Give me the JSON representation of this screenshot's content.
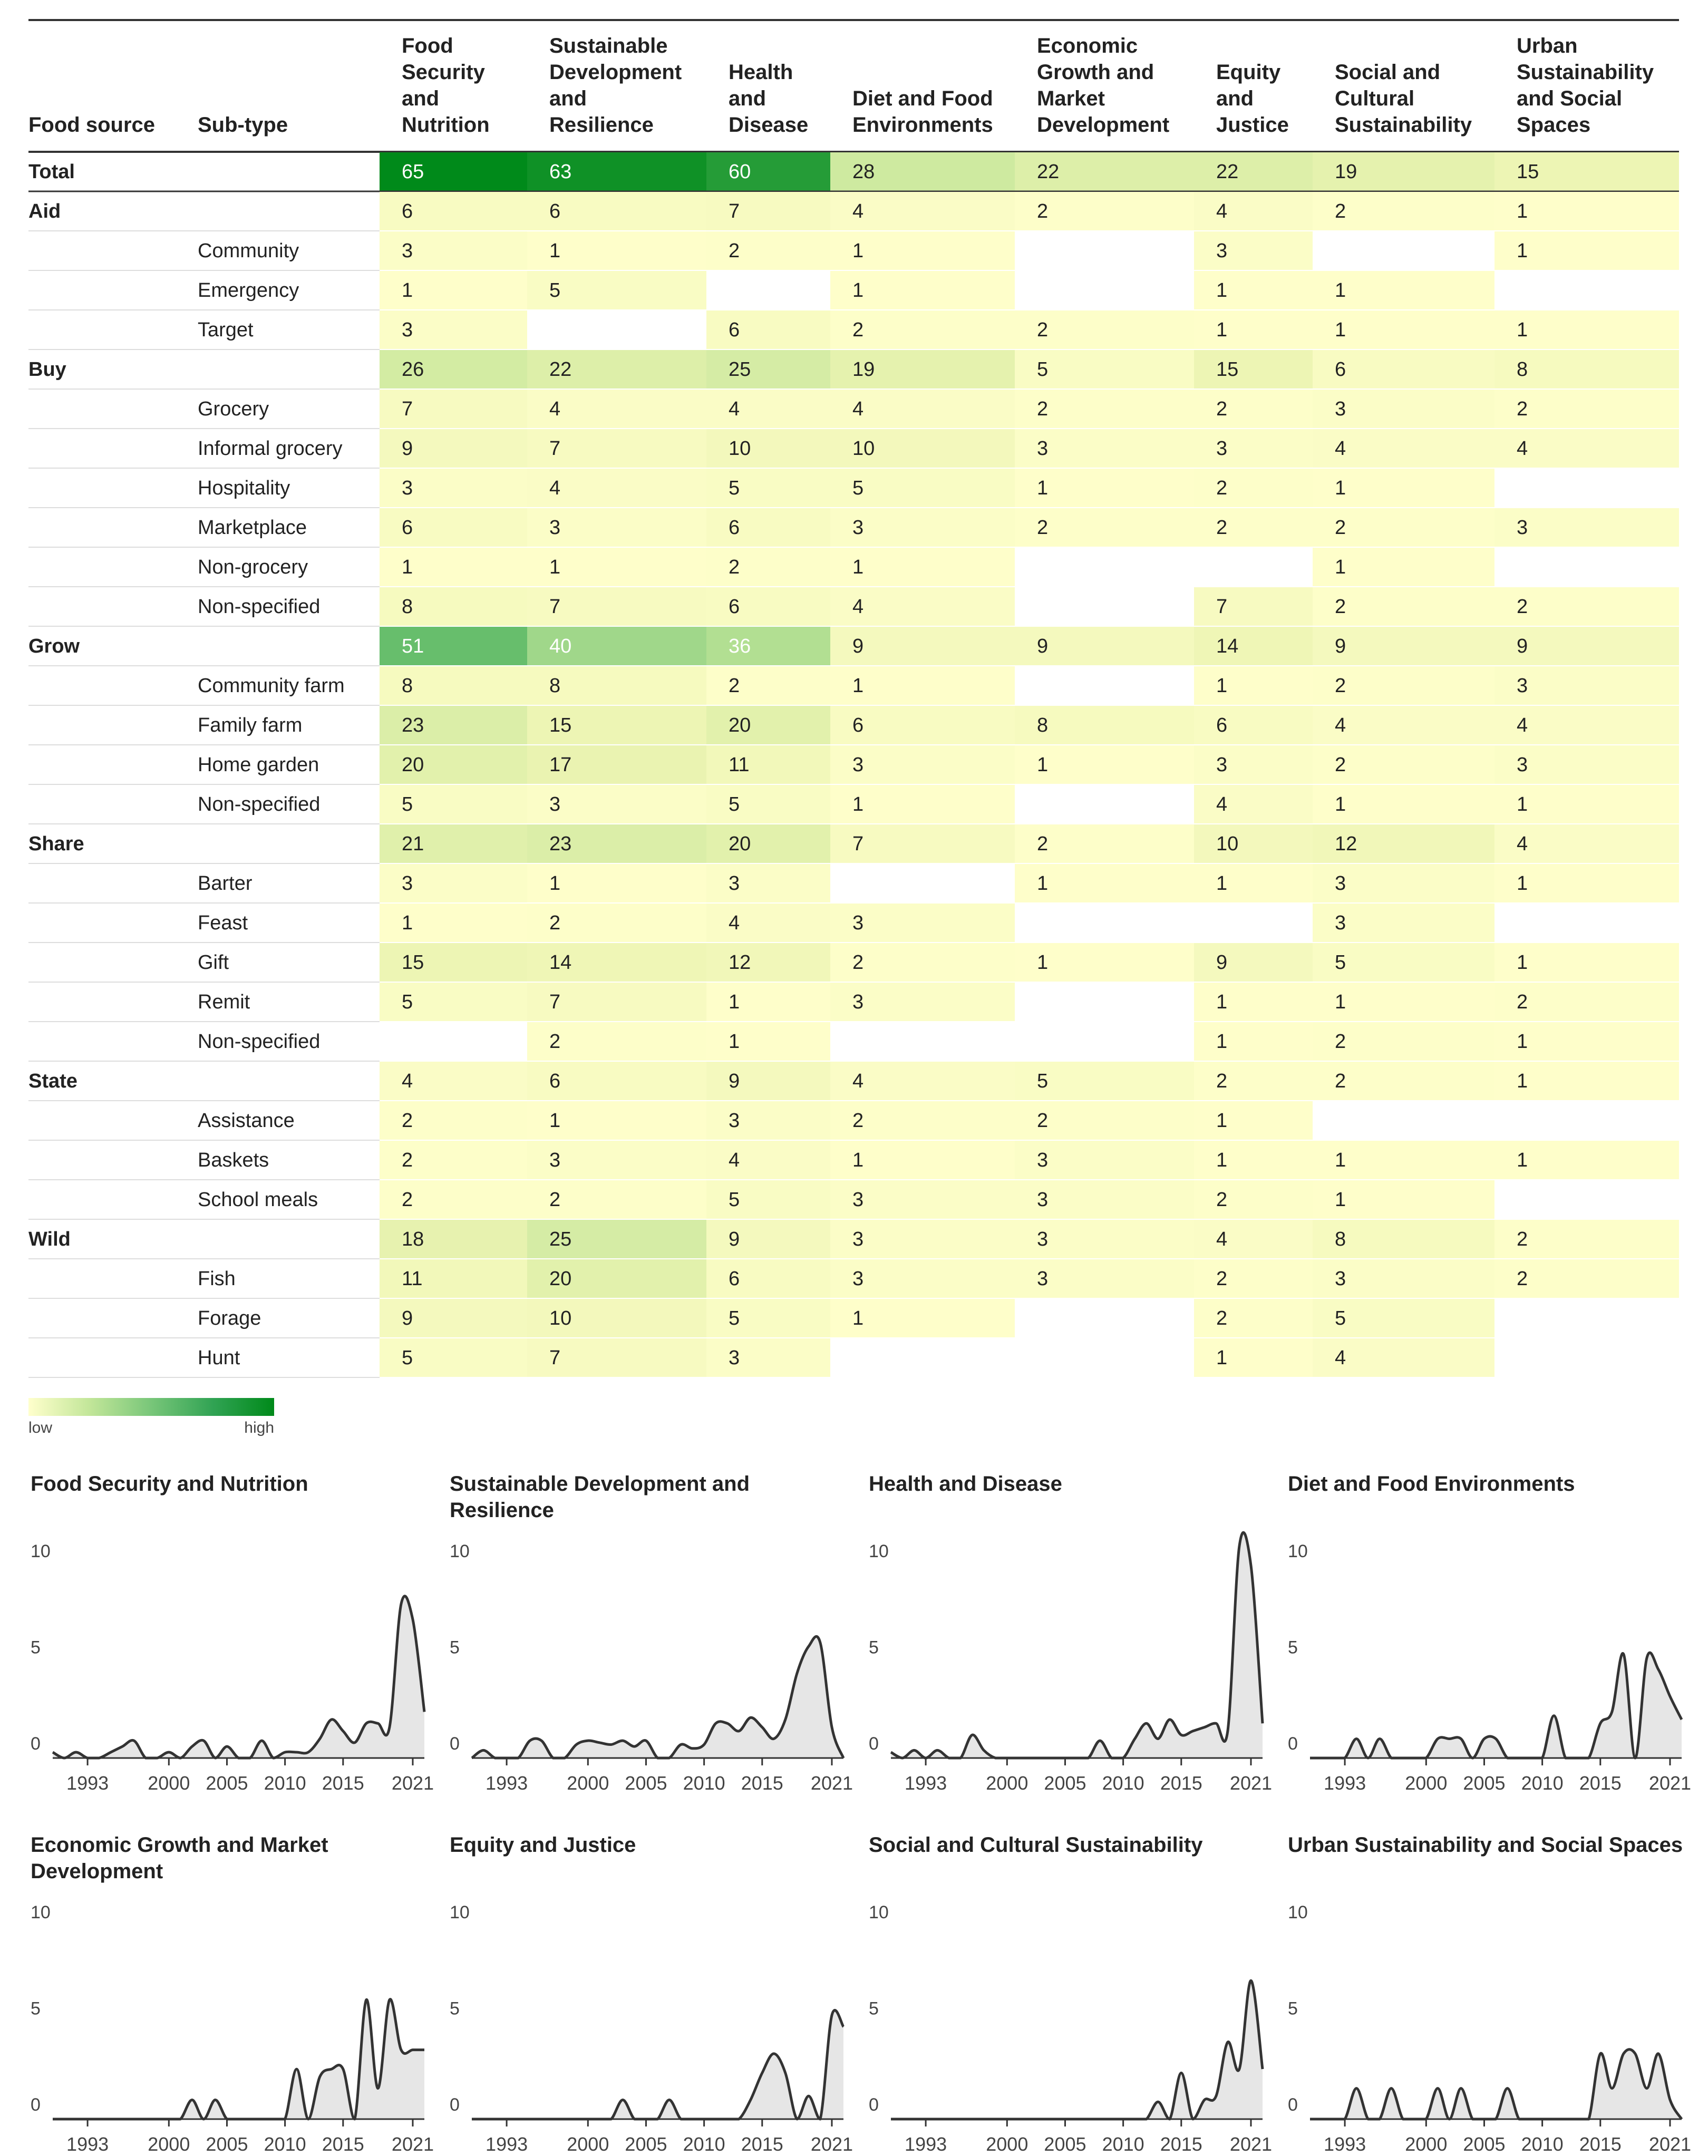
{
  "chart_data": [
    {
      "type": "table",
      "title": "",
      "headers": [
        "Food source",
        "Sub-type",
        "Food Security and Nutrition",
        "Sustainable Development and Resilience",
        "Health and Disease",
        "Diet and Food Environments",
        "Economic Growth and Market Development",
        "Equity and Justice",
        "Social and Cultural Sustainability",
        "Urban Sustainability and Social Spaces"
      ],
      "header_lines": [
        [
          "Food source"
        ],
        [
          "Sub-type"
        ],
        [
          "Food",
          "Security",
          "and",
          "Nutrition"
        ],
        [
          "Sustainable",
          "Development",
          "and",
          "Resilience"
        ],
        [
          "Health",
          "and",
          "Disease"
        ],
        [
          "Diet and Food",
          "Environments"
        ],
        [
          "Economic",
          "Growth and",
          "Market",
          "Development"
        ],
        [
          "Equity",
          "and",
          "Justice"
        ],
        [
          "Social and",
          "Cultural",
          "Sustainability"
        ],
        [
          "Urban",
          "Sustainability",
          "and Social",
          "Spaces"
        ]
      ],
      "rows": [
        {
          "source": "Total",
          "subtype": "",
          "values": [
            65,
            63,
            60,
            28,
            22,
            22,
            19,
            15
          ]
        },
        {
          "source": "Aid",
          "subtype": "",
          "values": [
            6,
            6,
            7,
            4,
            2,
            4,
            2,
            1
          ]
        },
        {
          "source": "",
          "subtype": "Community",
          "values": [
            3,
            1,
            2,
            1,
            null,
            3,
            null,
            1
          ]
        },
        {
          "source": "",
          "subtype": "Emergency",
          "values": [
            1,
            5,
            null,
            1,
            null,
            1,
            1,
            null
          ]
        },
        {
          "source": "",
          "subtype": "Target",
          "values": [
            3,
            null,
            6,
            2,
            2,
            1,
            1,
            1
          ]
        },
        {
          "source": "Buy",
          "subtype": "",
          "values": [
            26,
            22,
            25,
            19,
            5,
            15,
            6,
            8
          ]
        },
        {
          "source": "",
          "subtype": "Grocery",
          "values": [
            7,
            4,
            4,
            4,
            2,
            2,
            3,
            2
          ]
        },
        {
          "source": "",
          "subtype": "Informal grocery",
          "values": [
            9,
            7,
            10,
            10,
            3,
            3,
            4,
            4
          ]
        },
        {
          "source": "",
          "subtype": "Hospitality",
          "values": [
            3,
            4,
            5,
            5,
            1,
            2,
            1,
            null
          ]
        },
        {
          "source": "",
          "subtype": "Marketplace",
          "values": [
            6,
            3,
            6,
            3,
            2,
            2,
            2,
            3
          ]
        },
        {
          "source": "",
          "subtype": "Non-grocery",
          "values": [
            1,
            1,
            2,
            1,
            null,
            null,
            1,
            null
          ]
        },
        {
          "source": "",
          "subtype": "Non-specified",
          "values": [
            8,
            7,
            6,
            4,
            null,
            7,
            2,
            2
          ]
        },
        {
          "source": "Grow",
          "subtype": "",
          "values": [
            51,
            40,
            36,
            9,
            9,
            14,
            9,
            9
          ]
        },
        {
          "source": "",
          "subtype": "Community farm",
          "values": [
            8,
            8,
            2,
            1,
            null,
            1,
            2,
            3
          ]
        },
        {
          "source": "",
          "subtype": "Family farm",
          "values": [
            23,
            15,
            20,
            6,
            8,
            6,
            4,
            4
          ]
        },
        {
          "source": "",
          "subtype": "Home garden",
          "values": [
            20,
            17,
            11,
            3,
            1,
            3,
            2,
            3
          ]
        },
        {
          "source": "",
          "subtype": "Non-specified",
          "values": [
            5,
            3,
            5,
            1,
            null,
            4,
            1,
            1
          ]
        },
        {
          "source": "Share",
          "subtype": "",
          "values": [
            21,
            23,
            20,
            7,
            2,
            10,
            12,
            4
          ]
        },
        {
          "source": "",
          "subtype": "Barter",
          "values": [
            3,
            1,
            3,
            null,
            1,
            1,
            3,
            1
          ]
        },
        {
          "source": "",
          "subtype": "Feast",
          "values": [
            1,
            2,
            4,
            3,
            null,
            null,
            3,
            null
          ]
        },
        {
          "source": "",
          "subtype": "Gift",
          "values": [
            15,
            14,
            12,
            2,
            1,
            9,
            5,
            1
          ]
        },
        {
          "source": "",
          "subtype": "Remit",
          "values": [
            5,
            7,
            1,
            3,
            null,
            1,
            1,
            2
          ]
        },
        {
          "source": "",
          "subtype": "Non-specified",
          "values": [
            null,
            2,
            1,
            null,
            null,
            1,
            2,
            1
          ]
        },
        {
          "source": "State",
          "subtype": "",
          "values": [
            4,
            6,
            9,
            4,
            5,
            2,
            2,
            1
          ]
        },
        {
          "source": "",
          "subtype": "Assistance",
          "values": [
            2,
            1,
            3,
            2,
            2,
            1,
            null,
            null
          ]
        },
        {
          "source": "",
          "subtype": "Baskets",
          "values": [
            2,
            3,
            4,
            1,
            3,
            1,
            1,
            1
          ]
        },
        {
          "source": "",
          "subtype": "School meals",
          "values": [
            2,
            2,
            5,
            3,
            3,
            2,
            1,
            null
          ]
        },
        {
          "source": "Wild",
          "subtype": "",
          "values": [
            18,
            25,
            9,
            3,
            3,
            4,
            8,
            2
          ]
        },
        {
          "source": "",
          "subtype": "Fish",
          "values": [
            11,
            20,
            6,
            3,
            3,
            2,
            3,
            2
          ]
        },
        {
          "source": "",
          "subtype": "Forage",
          "values": [
            9,
            10,
            5,
            1,
            null,
            2,
            5,
            null
          ]
        },
        {
          "source": "",
          "subtype": "Hunt",
          "values": [
            5,
            7,
            3,
            null,
            null,
            1,
            4,
            null
          ]
        }
      ],
      "legend": {
        "low": "low",
        "high": "high"
      },
      "colors": {
        "low": "#ffffcc",
        "high": "#008a1a"
      }
    },
    {
      "type": "area",
      "xlim": [
        1990,
        2022
      ],
      "ylim": [
        0,
        10
      ],
      "xticks": [
        1993,
        2000,
        2005,
        2010,
        2015,
        2021
      ],
      "yticks": [
        0,
        5,
        10
      ],
      "panels": [
        {
          "title_lines": [
            "Food Security and Nutrition"
          ],
          "x": [
            1990,
            1991,
            1992,
            1993,
            1994,
            1995,
            1996,
            1997,
            1998,
            1999,
            2000,
            2001,
            2002,
            2003,
            2004,
            2005,
            2006,
            2007,
            2008,
            2009,
            2010,
            2011,
            2012,
            2013,
            2014,
            2015,
            2016,
            2017,
            2018,
            2019,
            2020,
            2021,
            2022
          ],
          "values": [
            0.3,
            0,
            0.3,
            0,
            0,
            0.3,
            0.6,
            0.9,
            0,
            0,
            0.3,
            0,
            0.6,
            0.9,
            0,
            0.6,
            0,
            0,
            0.9,
            0,
            0.3,
            0.3,
            0.3,
            1.0,
            2.0,
            1.4,
            0.8,
            1.8,
            1.8,
            1.6,
            8.0,
            7.2,
            2.4
          ]
        },
        {
          "title_lines": [
            "Sustainable Development and",
            "Resilience"
          ],
          "x": [
            1990,
            1991,
            1992,
            1993,
            1994,
            1995,
            1996,
            1997,
            1998,
            1999,
            2000,
            2001,
            2002,
            2003,
            2004,
            2005,
            2006,
            2007,
            2008,
            2009,
            2010,
            2011,
            2012,
            2013,
            2014,
            2015,
            2016,
            2017,
            2018,
            2019,
            2020,
            2021,
            2022
          ],
          "values": [
            0,
            0.4,
            0,
            0,
            0,
            0.9,
            0.9,
            0,
            0,
            0.7,
            0.9,
            0.8,
            0.7,
            0.9,
            0.6,
            0.9,
            0,
            0,
            0.7,
            0.5,
            0.7,
            1.8,
            1.8,
            1.4,
            2.1,
            1.6,
            1.0,
            2.0,
            4.4,
            5.8,
            6.0,
            1.6,
            0
          ]
        },
        {
          "title_lines": [
            "Health and Disease"
          ],
          "x": [
            1990,
            1991,
            1992,
            1993,
            1994,
            1995,
            1996,
            1997,
            1998,
            1999,
            2000,
            2001,
            2002,
            2003,
            2004,
            2005,
            2006,
            2007,
            2008,
            2009,
            2010,
            2011,
            2012,
            2013,
            2014,
            2015,
            2016,
            2017,
            2018,
            2019,
            2020,
            2021,
            2022
          ],
          "values": [
            0.3,
            0,
            0.4,
            0,
            0.4,
            0,
            0,
            1.2,
            0.4,
            0,
            0,
            0,
            0,
            0,
            0,
            0,
            0,
            0,
            0.9,
            0,
            0,
            1.0,
            1.8,
            1.0,
            2.0,
            1.2,
            1.4,
            1.6,
            1.8,
            1.4,
            11.0,
            10.0,
            1.8
          ]
        },
        {
          "title_lines": [
            "Diet and Food Environments"
          ],
          "x": [
            1990,
            1991,
            1992,
            1993,
            1994,
            1995,
            1996,
            1997,
            1998,
            1999,
            2000,
            2001,
            2002,
            2003,
            2004,
            2005,
            2006,
            2007,
            2008,
            2009,
            2010,
            2011,
            2012,
            2013,
            2014,
            2015,
            2016,
            2017,
            2018,
            2019,
            2020,
            2021,
            2022
          ],
          "values": [
            0,
            0,
            0,
            0,
            1.0,
            0,
            1.0,
            0,
            0,
            0,
            0,
            1.0,
            1.0,
            1.0,
            0,
            1.0,
            1.0,
            0,
            0,
            0,
            0,
            2.2,
            0,
            0,
            0,
            1.8,
            2.4,
            5.4,
            0,
            5.2,
            4.6,
            3.2,
            2.0
          ]
        },
        {
          "title_lines": [
            "Economic Growth and Market",
            "Development"
          ],
          "x": [
            1990,
            1991,
            1992,
            1993,
            1994,
            1995,
            1996,
            1997,
            1998,
            1999,
            2000,
            2001,
            2002,
            2003,
            2004,
            2005,
            2006,
            2007,
            2008,
            2009,
            2010,
            2011,
            2012,
            2013,
            2014,
            2015,
            2016,
            2017,
            2018,
            2019,
            2020,
            2021,
            2022
          ],
          "values": [
            0,
            0,
            0,
            0,
            0,
            0,
            0,
            0,
            0,
            0,
            0,
            0,
            1.0,
            0,
            1.0,
            0,
            0,
            0,
            0,
            0,
            0,
            2.6,
            0,
            2.2,
            2.6,
            2.6,
            0,
            6.2,
            1.6,
            6.2,
            3.6,
            3.6,
            3.6
          ]
        },
        {
          "title_lines": [
            "Equity and Justice"
          ],
          "x": [
            1990,
            1991,
            1992,
            1993,
            1994,
            1995,
            1996,
            1997,
            1998,
            1999,
            2000,
            2001,
            2002,
            2003,
            2004,
            2005,
            2006,
            2007,
            2008,
            2009,
            2010,
            2011,
            2012,
            2013,
            2014,
            2015,
            2016,
            2017,
            2018,
            2019,
            2020,
            2021,
            2022
          ],
          "values": [
            0,
            0,
            0,
            0,
            0,
            0,
            0,
            0,
            0,
            0,
            0,
            0,
            0,
            1.0,
            0,
            0,
            0,
            1.0,
            0,
            0,
            0,
            0,
            0,
            0,
            1.0,
            2.4,
            3.4,
            2.4,
            0,
            1.2,
            0,
            5.4,
            4.8
          ]
        },
        {
          "title_lines": [
            "Social and Cultural Sustainability"
          ],
          "x": [
            1990,
            1991,
            1992,
            1993,
            1994,
            1995,
            1996,
            1997,
            1998,
            1999,
            2000,
            2001,
            2002,
            2003,
            2004,
            2005,
            2006,
            2007,
            2008,
            2009,
            2010,
            2011,
            2012,
            2013,
            2014,
            2015,
            2016,
            2017,
            2018,
            2019,
            2020,
            2021,
            2022
          ],
          "values": [
            0,
            0,
            0,
            0,
            0,
            0,
            0,
            0,
            0,
            0,
            0,
            0,
            0,
            0,
            0,
            0,
            0,
            0,
            0,
            0,
            0,
            0,
            0,
            0.9,
            0,
            2.4,
            0,
            1.0,
            1.2,
            4.0,
            2.6,
            7.2,
            2.6
          ]
        },
        {
          "title_lines": [
            "Urban Sustainability and Social Spaces"
          ],
          "x": [
            1990,
            1991,
            1992,
            1993,
            1994,
            1995,
            1996,
            1997,
            1998,
            1999,
            2000,
            2001,
            2002,
            2003,
            2004,
            2005,
            2006,
            2007,
            2008,
            2009,
            2010,
            2011,
            2012,
            2013,
            2014,
            2015,
            2016,
            2017,
            2018,
            2019,
            2020,
            2021,
            2022
          ],
          "values": [
            0,
            0,
            0,
            0,
            1.6,
            0,
            0,
            1.6,
            0,
            0,
            0,
            1.6,
            0,
            1.6,
            0,
            0,
            0,
            1.6,
            0,
            0,
            0,
            0,
            0,
            0,
            0,
            3.4,
            1.6,
            3.4,
            3.4,
            1.6,
            3.4,
            1.0,
            0
          ]
        }
      ],
      "colors": {
        "line": "#333333",
        "fill": "#e6e6e6"
      }
    }
  ]
}
